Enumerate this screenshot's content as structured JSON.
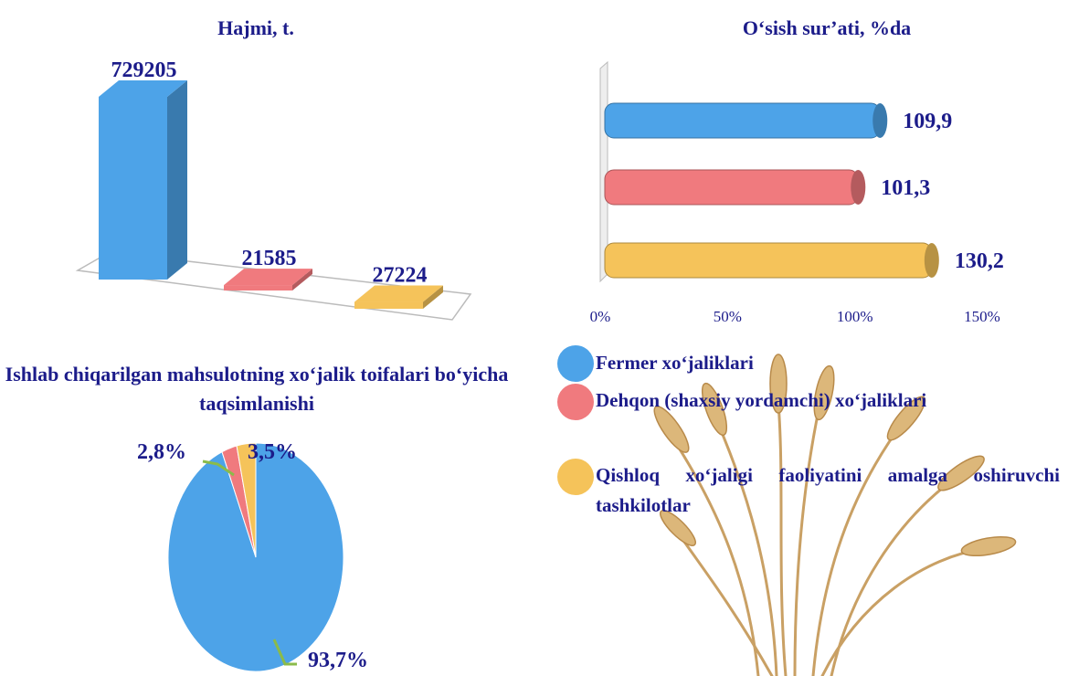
{
  "chart_data": [
    {
      "type": "bar3d",
      "title": "Hajmi, t.",
      "categories": [
        "Fermer xo‘jaliklari",
        "Dehqon (shaxsiy yordamchi) xo‘jaliklari",
        "Qishloq xo‘jaligi faoliyatini amalga oshiruvchi tashkilotlar"
      ],
      "colors": [
        "#4da3e8",
        "#f07a7e",
        "#f5c35a"
      ],
      "values": [
        729205,
        21585,
        27224
      ]
    },
    {
      "type": "hbar",
      "title": "O‘sish sur’ati, %da",
      "values": [
        109.9,
        101.3,
        130.2
      ],
      "value_labels": [
        "109,9",
        "101,3",
        "130,2"
      ],
      "xlim": [
        0,
        150
      ],
      "xticks": [
        {
          "value": 0,
          "label": "0%"
        },
        {
          "value": 50,
          "label": "50%"
        },
        {
          "value": 100,
          "label": "100%"
        },
        {
          "value": 150,
          "label": "150%"
        }
      ]
    },
    {
      "type": "pie",
      "title": "Ishlab chiqarilgan mahsulotning xo‘jalik toifalari bo‘yicha taqsimlanishi",
      "values": [
        93.7,
        2.8,
        3.5
      ],
      "value_labels": [
        "93,7%",
        "2,8%",
        "3,5%"
      ]
    }
  ]
}
